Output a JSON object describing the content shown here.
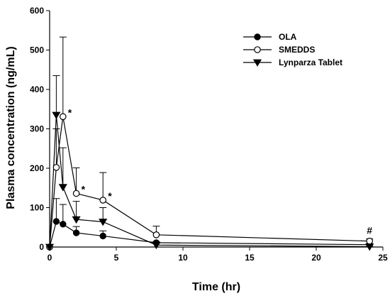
{
  "chart_data": {
    "type": "line",
    "title": "",
    "xlabel": "Time (hr)",
    "ylabel": "Plasma concentration (ng/mL)",
    "xlim": [
      0,
      25
    ],
    "ylim": [
      0,
      600
    ],
    "x_ticks": [
      0,
      5,
      10,
      15,
      20,
      25
    ],
    "y_ticks": [
      0,
      100,
      200,
      300,
      400,
      500,
      600
    ],
    "grid": false,
    "legend_position": "top-right",
    "x": [
      0,
      0.5,
      1,
      2,
      4,
      8,
      24
    ],
    "series": [
      {
        "name": "OLA",
        "marker": "filled-circle",
        "color": "#000000",
        "values": [
          0,
          65,
          58,
          36,
          28,
          11,
          6
        ],
        "error": [
          0,
          58,
          50,
          16,
          13,
          3,
          2
        ]
      },
      {
        "name": "SMEDDS",
        "marker": "open-circle",
        "color": "#000000",
        "values": [
          0,
          202,
          331,
          136,
          119,
          31,
          15
        ],
        "error": [
          0,
          98,
          202,
          65,
          70,
          22,
          6
        ]
      },
      {
        "name": "Lynparza Tablet",
        "marker": "filled-triangle-down",
        "color": "#000000",
        "values": [
          0,
          335,
          152,
          70,
          64,
          5,
          1
        ],
        "error": [
          0,
          100,
          100,
          46,
          36,
          5,
          1
        ]
      }
    ],
    "annotations": [
      {
        "text": "*",
        "x": 1,
        "y": 331
      },
      {
        "text": "*",
        "x": 2,
        "y": 136
      },
      {
        "text": "*",
        "x": 4,
        "y": 119
      },
      {
        "text": "#",
        "x": 24,
        "y": 15
      }
    ]
  }
}
